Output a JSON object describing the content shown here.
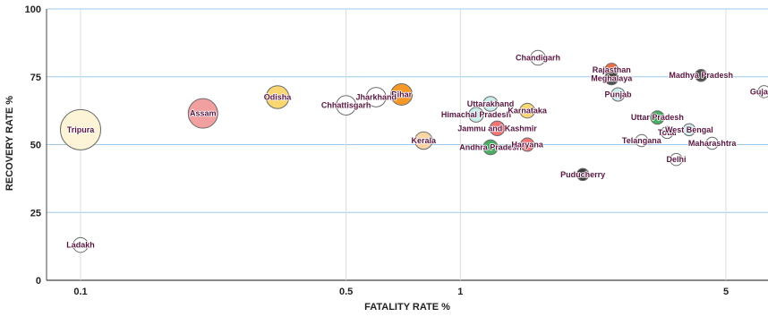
{
  "chart_data": {
    "type": "scatter",
    "title": "",
    "xlabel": "FATALITY RATE %",
    "ylabel": "RECOVERY RATE %",
    "x_scale": "log",
    "xlim": [
      0.075,
      6.3
    ],
    "ylim": [
      0,
      100
    ],
    "x_ticks": [
      {
        "value": 0.1,
        "label": "0.1"
      },
      {
        "value": 0.5,
        "label": "0.5"
      },
      {
        "value": 1,
        "label": "1"
      },
      {
        "value": 5,
        "label": "5"
      }
    ],
    "y_ticks": [
      {
        "value": 0,
        "label": "0"
      },
      {
        "value": 25,
        "label": "25"
      },
      {
        "value": 50,
        "label": "50"
      },
      {
        "value": 75,
        "label": "75"
      },
      {
        "value": 100,
        "label": "100"
      }
    ],
    "grid": {
      "horizontal": true,
      "vertical": true
    },
    "points": [
      {
        "label": "Tripura",
        "x": 0.1,
        "y": 55.5,
        "size": 3.0,
        "color": "#fdf3d6"
      },
      {
        "label": "Ladakh",
        "x": 0.1,
        "y": 13,
        "size": 1.1,
        "color": "#ffffff"
      },
      {
        "label": "Assam",
        "x": 0.21,
        "y": 61.5,
        "size": 2.2,
        "color": "#f19a9a"
      },
      {
        "label": "Odisha",
        "x": 0.33,
        "y": 67.5,
        "size": 1.7,
        "color": "#fbd56a"
      },
      {
        "label": "Chhattisgarh",
        "x": 0.5,
        "y": 64.5,
        "size": 1.45,
        "color": "#ffffff"
      },
      {
        "label": "Jharkhand",
        "x": 0.6,
        "y": 67.5,
        "size": 1.45,
        "color": "#ffffff"
      },
      {
        "label": "Bihar",
        "x": 0.7,
        "y": 68.5,
        "size": 1.6,
        "color": "#f7941d"
      },
      {
        "label": "Kerala",
        "x": 0.8,
        "y": 51.5,
        "size": 1.3,
        "color": "#fbd3a0"
      },
      {
        "label": "Chandigarh",
        "x": 1.6,
        "y": 82,
        "size": 1.1,
        "color": "#ffffff"
      },
      {
        "label": "Uttarakhand",
        "x": 1.2,
        "y": 65,
        "size": 1.1,
        "color": "#c5ecea"
      },
      {
        "label": "Himachal Pradesh",
        "x": 1.1,
        "y": 61,
        "size": 1.1,
        "color": "#c5ecea"
      },
      {
        "label": "Karnataka",
        "x": 1.5,
        "y": 62.5,
        "size": 1.1,
        "color": "#fbd56a"
      },
      {
        "label": "Jammu and Kashmir",
        "x": 1.25,
        "y": 56,
        "size": 1.1,
        "color": "#f26d6d"
      },
      {
        "label": "Andhra Pradesh",
        "x": 1.2,
        "y": 49,
        "size": 1.1,
        "color": "#3faa5a"
      },
      {
        "label": "Haryana",
        "x": 1.5,
        "y": 50,
        "size": 1.0,
        "color": "#f26d6d"
      },
      {
        "label": "Rajasthan",
        "x": 2.5,
        "y": 77.5,
        "size": 1.0,
        "color": "#e86a3a"
      },
      {
        "label": "Meghalaya",
        "x": 2.5,
        "y": 74.5,
        "size": 1.0,
        "color": "#444444"
      },
      {
        "label": "Punjab",
        "x": 2.6,
        "y": 68.5,
        "size": 1.0,
        "color": "#c5ecea"
      },
      {
        "label": "Uttar Pradesh",
        "x": 3.3,
        "y": 60,
        "size": 1.0,
        "color": "#3faa5a"
      },
      {
        "label": "Total",
        "x": 3.5,
        "y": 54.5,
        "size": 0.9,
        "color": "#ffffff"
      },
      {
        "label": "Telangana",
        "x": 3.0,
        "y": 51.5,
        "size": 0.9,
        "color": "#ffffff"
      },
      {
        "label": "West Bengal",
        "x": 4.0,
        "y": 55.5,
        "size": 0.9,
        "color": "#c5ecea"
      },
      {
        "label": "Maharashtra",
        "x": 4.6,
        "y": 50.5,
        "size": 0.9,
        "color": "#ffffff"
      },
      {
        "label": "Madhya Pradesh",
        "x": 4.3,
        "y": 75.5,
        "size": 0.9,
        "color": "#444444"
      },
      {
        "label": "Delhi",
        "x": 3.7,
        "y": 44.5,
        "size": 0.9,
        "color": "#ffffff"
      },
      {
        "label": "Puducherry",
        "x": 2.1,
        "y": 39,
        "size": 0.9,
        "color": "#333333"
      },
      {
        "label": "Gujarat",
        "x": 6.3,
        "y": 69.5,
        "size": 0.9,
        "color": "#ffffff"
      }
    ]
  },
  "style": {
    "grid_color": "#9ec9ea",
    "vgrid_color": "#dcdcdc",
    "bubble_stroke": "#6b6b6b",
    "axis_color": "#444444",
    "label_color": "#5a1640"
  }
}
